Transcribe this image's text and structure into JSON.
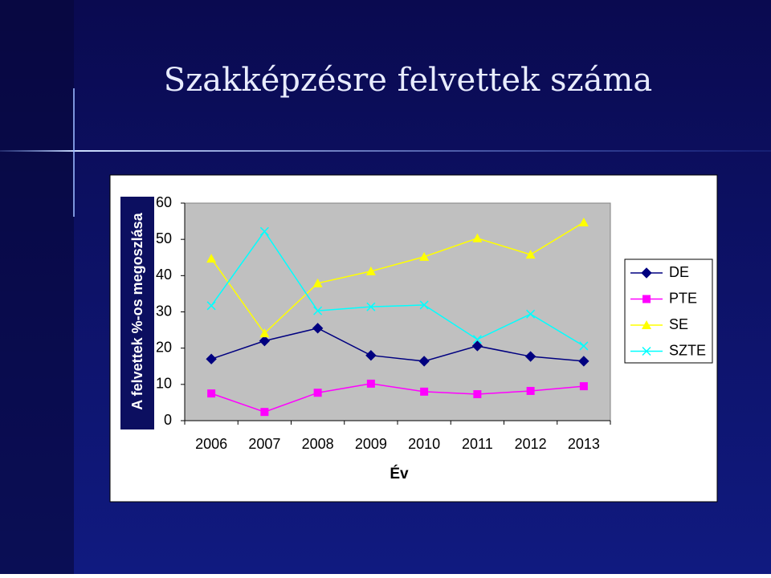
{
  "chart_data": {
    "type": "line",
    "title": "Szakképzésre felvettek száma",
    "x_label": "Év",
    "y_label": "A felvettek %-os megoszlása",
    "categories": [
      "2006",
      "2007",
      "2008",
      "2009",
      "2010",
      "2011",
      "2012",
      "2013"
    ],
    "series": [
      {
        "name": "DE",
        "color": "#000080",
        "marker": "diamond",
        "values": [
          17,
          22,
          25.5,
          18,
          16.4,
          20.6,
          17.7,
          16.4
        ]
      },
      {
        "name": "PTE",
        "color": "#ff00ff",
        "marker": "square",
        "values": [
          7.5,
          2.4,
          7.7,
          10.2,
          8,
          7.3,
          8.2,
          9.5
        ]
      },
      {
        "name": "SE",
        "color": "#ffff00",
        "marker": "triangle",
        "values": [
          44.7,
          24.1,
          37.9,
          41.2,
          45.2,
          50.3,
          45.8,
          54.7
        ]
      },
      {
        "name": "SZTE",
        "color": "#00ffff",
        "marker": "x",
        "values": [
          31.7,
          52.2,
          30.3,
          31.4,
          31.9,
          22.4,
          29.4,
          20.6
        ]
      }
    ],
    "ylim": [
      0,
      60
    ],
    "yticks": [
      0,
      10,
      20,
      30,
      40,
      50,
      60
    ],
    "legend": "right"
  }
}
